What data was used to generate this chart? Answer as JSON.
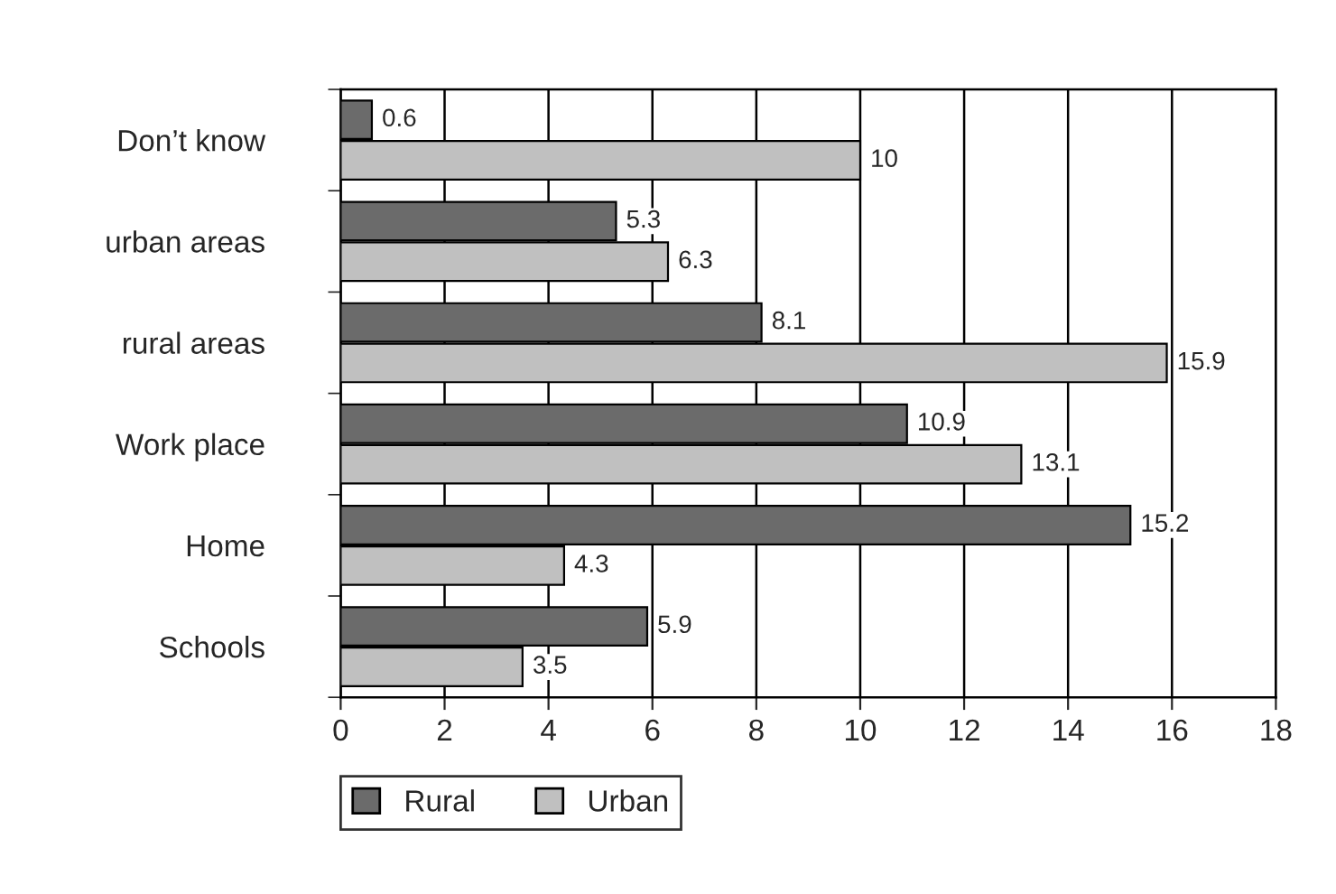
{
  "chart_data": {
    "type": "bar",
    "orientation": "horizontal",
    "categories": [
      "Don’t know",
      "urban areas",
      "rural areas",
      "Work place",
      "Home",
      "Schools"
    ],
    "series": [
      {
        "name": "Rural",
        "color": "#6b6b6b",
        "values": [
          0.6,
          5.3,
          8.1,
          10.9,
          15.2,
          5.9
        ]
      },
      {
        "name": "Urban",
        "color": "#c0c0c0",
        "values": [
          10,
          6.3,
          15.9,
          13.1,
          4.3,
          3.5
        ]
      }
    ],
    "xlim": [
      0,
      18
    ],
    "xticks": [
      0,
      2,
      4,
      6,
      8,
      10,
      12,
      14,
      16,
      18
    ],
    "grid": "x",
    "legend": "bottom",
    "data_labels": true
  }
}
